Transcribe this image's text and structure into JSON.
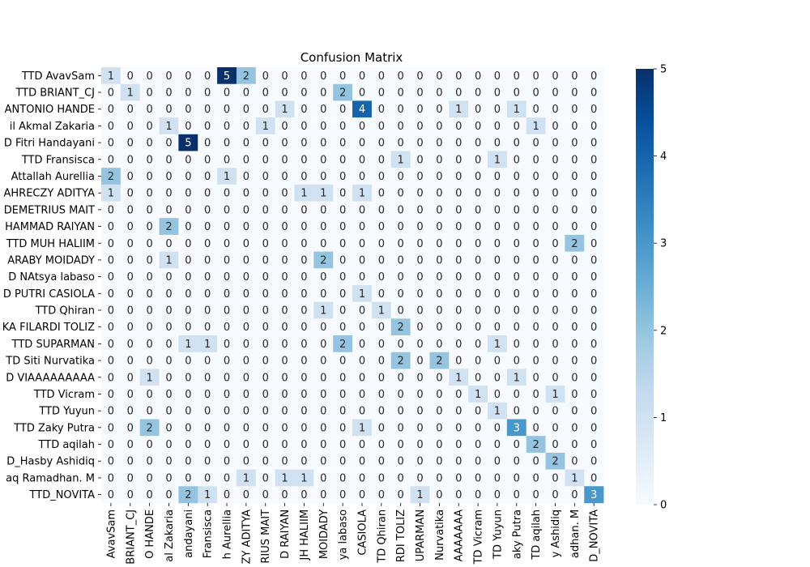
{
  "chart_data": {
    "type": "heatmap",
    "title": "Confusion Matrix",
    "xlabel": "",
    "ylabel": "",
    "row_labels": [
      "TTD AvavSam",
      "TTD BRIANT_CJ",
      "ANTONIO HANDE",
      "il Akmal Zakaria",
      "D Fitri Handayani",
      "TTD Fransisca",
      "Attallah Aurellia",
      "AHRECZY ADITYA",
      "DEMETRIUS MAIT",
      "HAMMAD RAIYAN",
      "TTD MUH HALIIM",
      "ARABY MOIDADY",
      "D NAtsya labaso",
      "D PUTRI CASIOLA",
      "TTD Qhiran",
      "KA FILARDI TOLIZ",
      "TTD SUPARMAN",
      "TD Siti Nurvatika",
      "D VIAAAAAAAAA",
      "TTD Vicram",
      "TTD Yuyun",
      "TTD Zaky Putra",
      "TTD aqilah",
      "D_Hasby Ashidiq",
      "aq Ramadhan. M",
      "TTD_NOVITA"
    ],
    "col_labels": [
      "AvavSam",
      "BRIANT_CJ",
      "O HANDE",
      "al Zakaria",
      "andayani",
      "Fransisca",
      "h Aurellia",
      "ZY ADITYA",
      "RIUS MAIT",
      "D RAIYAN",
      "JH HALIIM",
      "MOIDADY",
      "ya labaso",
      "CASIOLA",
      "TD Qhiran",
      "RDI TOLIZ",
      "UPARMAN",
      "Nurvatika",
      "AAAAAAA",
      "TD Vicram",
      "TD Yuyun",
      "aky Putra",
      "TD aqilah",
      "y Ashidiq",
      "adhan. M",
      "D_NOVITA"
    ],
    "matrix": [
      [
        1,
        0,
        0,
        0,
        0,
        0,
        5,
        2,
        0,
        0,
        0,
        0,
        0,
        0,
        0,
        0,
        0,
        0,
        0,
        0,
        0,
        0,
        0,
        0,
        0,
        0
      ],
      [
        0,
        1,
        0,
        0,
        0,
        0,
        0,
        0,
        0,
        0,
        0,
        0,
        2,
        0,
        0,
        0,
        0,
        0,
        0,
        0,
        0,
        0,
        0,
        0,
        0,
        0
      ],
      [
        0,
        0,
        0,
        0,
        0,
        0,
        0,
        0,
        0,
        1,
        0,
        0,
        0,
        4,
        0,
        0,
        0,
        0,
        1,
        0,
        0,
        1,
        0,
        0,
        0,
        0
      ],
      [
        0,
        0,
        0,
        1,
        0,
        0,
        0,
        0,
        1,
        0,
        0,
        0,
        0,
        0,
        0,
        0,
        0,
        0,
        0,
        0,
        0,
        0,
        1,
        0,
        0,
        0
      ],
      [
        0,
        0,
        0,
        0,
        5,
        0,
        0,
        0,
        0,
        0,
        0,
        0,
        0,
        0,
        0,
        0,
        0,
        0,
        0,
        0,
        0,
        0,
        0,
        0,
        0,
        0
      ],
      [
        0,
        0,
        0,
        0,
        0,
        0,
        0,
        0,
        0,
        0,
        0,
        0,
        0,
        0,
        0,
        1,
        0,
        0,
        0,
        0,
        1,
        0,
        0,
        0,
        0,
        0
      ],
      [
        2,
        0,
        0,
        0,
        0,
        0,
        1,
        0,
        0,
        0,
        0,
        0,
        0,
        0,
        0,
        0,
        0,
        0,
        0,
        0,
        0,
        0,
        0,
        0,
        0,
        0
      ],
      [
        1,
        0,
        0,
        0,
        0,
        0,
        0,
        0,
        0,
        0,
        1,
        1,
        0,
        1,
        0,
        0,
        0,
        0,
        0,
        0,
        0,
        0,
        0,
        0,
        0,
        0
      ],
      [
        0,
        0,
        0,
        0,
        0,
        0,
        0,
        0,
        0,
        0,
        0,
        0,
        0,
        0,
        0,
        0,
        0,
        0,
        0,
        0,
        0,
        0,
        0,
        0,
        0,
        0
      ],
      [
        0,
        0,
        0,
        2,
        0,
        0,
        0,
        0,
        0,
        0,
        0,
        0,
        0,
        0,
        0,
        0,
        0,
        0,
        0,
        0,
        0,
        0,
        0,
        0,
        0,
        0
      ],
      [
        0,
        0,
        0,
        0,
        0,
        0,
        0,
        0,
        0,
        0,
        0,
        0,
        0,
        0,
        0,
        0,
        0,
        0,
        0,
        0,
        0,
        0,
        0,
        0,
        2,
        0
      ],
      [
        0,
        0,
        0,
        1,
        0,
        0,
        0,
        0,
        0,
        0,
        0,
        2,
        0,
        0,
        0,
        0,
        0,
        0,
        0,
        0,
        0,
        0,
        0,
        0,
        0,
        0
      ],
      [
        0,
        0,
        0,
        0,
        0,
        0,
        0,
        0,
        0,
        0,
        0,
        0,
        0,
        0,
        0,
        0,
        0,
        0,
        0,
        0,
        0,
        0,
        0,
        0,
        0,
        0
      ],
      [
        0,
        0,
        0,
        0,
        0,
        0,
        0,
        0,
        0,
        0,
        0,
        0,
        0,
        1,
        0,
        0,
        0,
        0,
        0,
        0,
        0,
        0,
        0,
        0,
        0,
        0
      ],
      [
        0,
        0,
        0,
        0,
        0,
        0,
        0,
        0,
        0,
        0,
        0,
        1,
        0,
        0,
        1,
        0,
        0,
        0,
        0,
        0,
        0,
        0,
        0,
        0,
        0,
        0
      ],
      [
        0,
        0,
        0,
        0,
        0,
        0,
        0,
        0,
        0,
        0,
        0,
        0,
        0,
        0,
        0,
        2,
        0,
        0,
        0,
        0,
        0,
        0,
        0,
        0,
        0,
        0
      ],
      [
        0,
        0,
        0,
        0,
        1,
        1,
        0,
        0,
        0,
        0,
        0,
        0,
        2,
        0,
        0,
        0,
        0,
        0,
        0,
        0,
        1,
        0,
        0,
        0,
        0,
        0
      ],
      [
        0,
        0,
        0,
        0,
        0,
        0,
        0,
        0,
        0,
        0,
        0,
        0,
        0,
        0,
        0,
        2,
        0,
        2,
        0,
        0,
        0,
        0,
        0,
        0,
        0,
        0
      ],
      [
        0,
        0,
        1,
        0,
        0,
        0,
        0,
        0,
        0,
        0,
        0,
        0,
        0,
        0,
        0,
        0,
        0,
        0,
        1,
        0,
        0,
        1,
        0,
        0,
        0,
        0
      ],
      [
        0,
        0,
        0,
        0,
        0,
        0,
        0,
        0,
        0,
        0,
        0,
        0,
        0,
        0,
        0,
        0,
        0,
        0,
        0,
        1,
        0,
        0,
        0,
        1,
        0,
        0
      ],
      [
        0,
        0,
        0,
        0,
        0,
        0,
        0,
        0,
        0,
        0,
        0,
        0,
        0,
        0,
        0,
        0,
        0,
        0,
        0,
        0,
        1,
        0,
        0,
        0,
        0,
        0
      ],
      [
        0,
        0,
        2,
        0,
        0,
        0,
        0,
        0,
        0,
        0,
        0,
        0,
        0,
        1,
        0,
        0,
        0,
        0,
        0,
        0,
        0,
        3,
        0,
        0,
        0,
        0
      ],
      [
        0,
        0,
        0,
        0,
        0,
        0,
        0,
        0,
        0,
        0,
        0,
        0,
        0,
        0,
        0,
        0,
        0,
        0,
        0,
        0,
        0,
        0,
        2,
        0,
        0,
        0
      ],
      [
        0,
        0,
        0,
        0,
        0,
        0,
        0,
        0,
        0,
        0,
        0,
        0,
        0,
        0,
        0,
        0,
        0,
        0,
        0,
        0,
        0,
        0,
        0,
        2,
        0,
        0
      ],
      [
        0,
        0,
        0,
        0,
        0,
        0,
        0,
        1,
        0,
        1,
        1,
        0,
        0,
        0,
        0,
        0,
        0,
        0,
        0,
        0,
        0,
        0,
        0,
        0,
        1,
        0
      ],
      [
        0,
        0,
        0,
        0,
        2,
        1,
        0,
        0,
        0,
        0,
        0,
        0,
        0,
        0,
        0,
        0,
        1,
        0,
        0,
        0,
        0,
        0,
        0,
        0,
        0,
        3
      ]
    ],
    "colorbar": {
      "min": 0,
      "max": 5,
      "ticks": [
        "0",
        "1",
        "2",
        "3",
        "4",
        "5"
      ]
    },
    "colormap": "Blues",
    "colors": {
      "low": "#f7fbff",
      "high": "#08306b",
      "text_dark": "#262626",
      "text_light": "#ffffff"
    }
  }
}
